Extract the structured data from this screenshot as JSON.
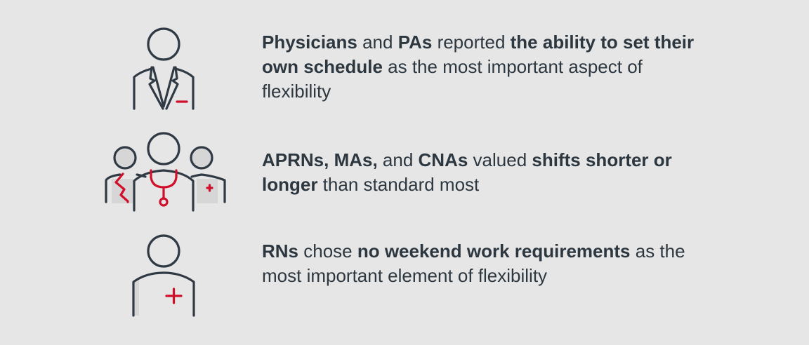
{
  "colors": {
    "background": "#e6e6e6",
    "stroke": "#2f3a44",
    "accent": "#d0102a",
    "text": "#2d3740"
  },
  "items": [
    {
      "icon": "physician-icon",
      "segments": [
        {
          "text": "Physicians",
          "bold": true
        },
        {
          "text": " and ",
          "bold": false
        },
        {
          "text": "PAs",
          "bold": true
        },
        {
          "text": " reported ",
          "bold": false
        },
        {
          "text": "the ability to set their own schedule",
          "bold": true
        },
        {
          "text": " as the most important aspect of flexibility",
          "bold": false
        }
      ]
    },
    {
      "icon": "care-team-icon",
      "segments": [
        {
          "text": "APRNs, MAs,",
          "bold": true
        },
        {
          "text": " and ",
          "bold": false
        },
        {
          "text": "CNAs",
          "bold": true
        },
        {
          "text": " valued ",
          "bold": false
        },
        {
          "text": "shifts shorter or longer",
          "bold": true
        },
        {
          "text": " than standard most",
          "bold": false
        }
      ]
    },
    {
      "icon": "nurse-icon",
      "segments": [
        {
          "text": "RNs",
          "bold": true
        },
        {
          "text": " chose ",
          "bold": false
        },
        {
          "text": "no weekend work requirements",
          "bold": true
        },
        {
          "text": " as the most important element of flexibility",
          "bold": false
        }
      ]
    }
  ]
}
